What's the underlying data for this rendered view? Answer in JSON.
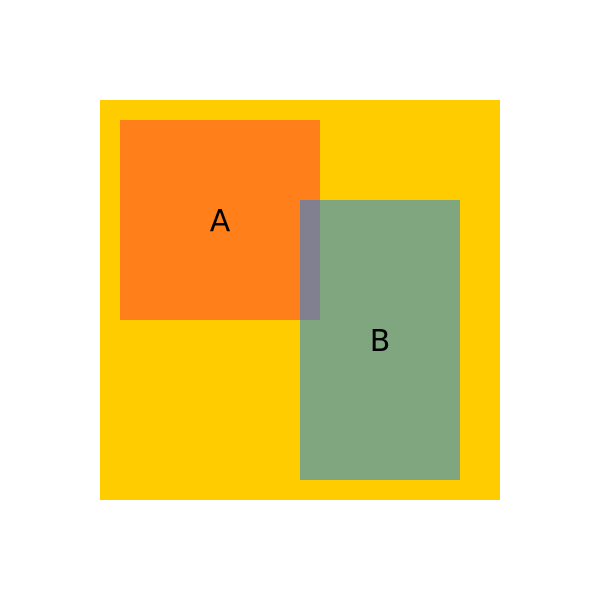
{
  "colors": {
    "container_fill": "#ffcc00",
    "rect_a_fill": "#ff7f1a",
    "rect_b_fill": "#80a680",
    "overlap_fill": "#808090"
  },
  "shapes": {
    "rect_a": {
      "label": "A"
    },
    "rect_b": {
      "label": "B"
    }
  }
}
